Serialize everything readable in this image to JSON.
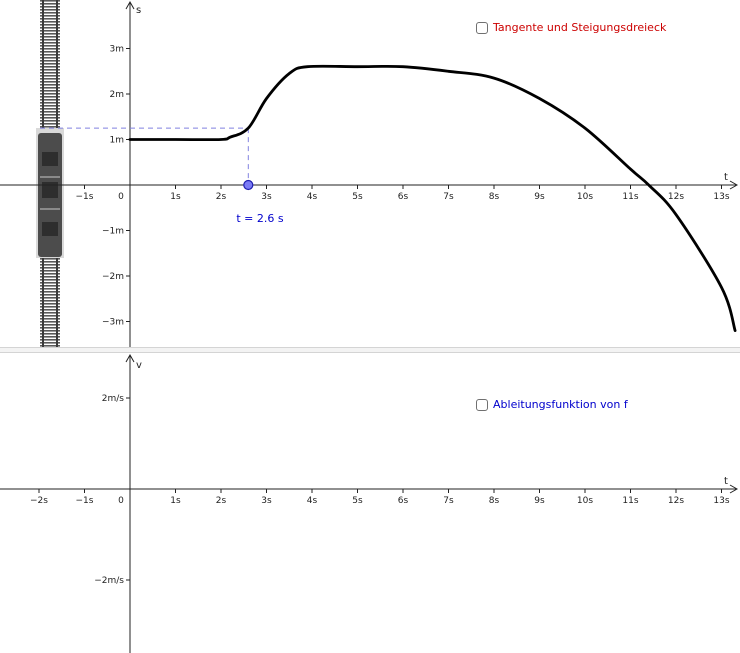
{
  "colors": {
    "curve": "#000000",
    "axis": "#222222",
    "point_fill": "#7b7bf5",
    "point_stroke": "#1f1fb0",
    "guide_dashed": "#8080e0",
    "t_value_text": "#0000cc",
    "checkbox_tangent_text": "#cc0000",
    "checkbox_derivative_text": "#0000cc"
  },
  "top_graph": {
    "x_axis_label": "t",
    "y_axis_label": "s",
    "x_tick_labels": [
      "−1s",
      "0",
      "1s",
      "2s",
      "3s",
      "4s",
      "5s",
      "6s",
      "7s",
      "8s",
      "9s",
      "10s",
      "11s",
      "12s",
      "13s"
    ],
    "y_tick_labels": [
      "3m",
      "2m",
      "1m",
      "−1m",
      "−2m",
      "−3m"
    ],
    "point_t": 2.6,
    "t_value_text": "t = 2.6 s",
    "train_image_icon": "train-on-track-icon"
  },
  "bottom_graph": {
    "x_axis_label": "t",
    "y_axis_label": "v",
    "x_tick_labels": [
      "−2s",
      "−1s",
      "0",
      "1s",
      "2s",
      "3s",
      "4s",
      "5s",
      "6s",
      "7s",
      "8s",
      "9s",
      "10s",
      "11s",
      "12s",
      "13s"
    ],
    "y_tick_labels": [
      "2m/s",
      "−2m/s"
    ]
  },
  "checkboxes": {
    "tangent_label": "Tangente und Steigungsdreieck",
    "tangent_checked": false,
    "derivative_label": "Ableitungsfunktion von f",
    "derivative_checked": false
  },
  "chart_data": {
    "type": "line",
    "title": "",
    "xlabel": "t",
    "ylabel": "s",
    "x_unit": "s",
    "y_unit": "m",
    "xlim": [
      -2.8,
      13.5
    ],
    "ylim": [
      -3.5,
      4.0
    ],
    "series": [
      {
        "x": [
          0,
          1,
          2,
          2.2,
          2.6,
          3.0,
          3.5,
          3.9,
          5,
          6,
          7,
          8,
          9,
          10,
          11,
          11.4,
          12,
          13,
          13.3
        ],
        "values": [
          1.0,
          1.0,
          1.0,
          1.05,
          1.25,
          1.9,
          2.45,
          2.6,
          2.6,
          2.6,
          2.5,
          2.35,
          1.9,
          1.25,
          0.35,
          0.0,
          -0.65,
          -2.25,
          -3.2
        ]
      }
    ],
    "marked_point": {
      "t": 2.6,
      "s": 1.25
    }
  }
}
